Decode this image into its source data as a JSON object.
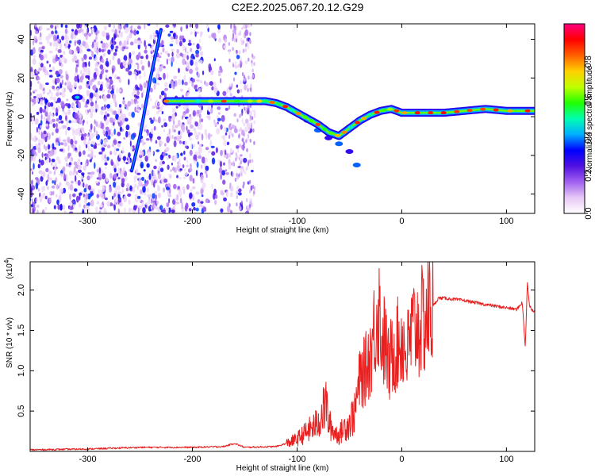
{
  "figure_title": "C2E2.2025.067.20.12.G29",
  "chart_data": [
    {
      "type": "heatmap",
      "title": "C2E2.2025.067.20.12.G29",
      "xlabel": "Height of straight line (km)",
      "ylabel": "Frequency (Hz)",
      "xlim": [
        -355,
        127
      ],
      "ylim": [
        -50,
        48
      ],
      "xticks": [
        -300,
        -200,
        -100,
        0,
        100
      ],
      "yticks": [
        -40,
        -20,
        0,
        20,
        40
      ],
      "grid": false,
      "colorbar": {
        "label": "Normalized spectral amplitude",
        "range": [
          0,
          1
        ],
        "ticks": [
          "0.0",
          "0.2",
          "0.4",
          "0.6",
          "0.8"
        ],
        "colors": [
          "#ffffff",
          "#e6c8f5",
          "#a060f0",
          "#5010e0",
          "#0000ff",
          "#00b0ff",
          "#00ffb0",
          "#20ff00",
          "#c0ff00",
          "#ffd000",
          "#ff6000",
          "#ff0000",
          "#ff0080"
        ]
      },
      "ridge": {
        "name": "",
        "x": [
          -225,
          -200,
          -180,
          -160,
          -140,
          -130,
          -120,
          -110,
          -100,
          -90,
          -80,
          -70,
          -60,
          -50,
          -40,
          -30,
          -20,
          -10,
          0,
          20,
          40,
          60,
          80,
          100,
          127
        ],
        "y": [
          8,
          8,
          8,
          8,
          8,
          8,
          7,
          5,
          2,
          -1,
          -4,
          -8,
          -10,
          -6,
          -2,
          1,
          3,
          4,
          2,
          2,
          2,
          3,
          4,
          3,
          3
        ]
      },
      "secondary_branch": {
        "x": [
          -90,
          -80,
          -70,
          -60,
          -50,
          -43
        ],
        "y": [
          -2,
          -7,
          -11,
          -14,
          -18,
          -25
        ]
      },
      "diagonal_streak": {
        "x": [
          -258,
          -250,
          -240,
          -230
        ],
        "y": [
          -28,
          -10,
          20,
          45
        ]
      },
      "isolated_blob": {
        "x": -310,
        "y": 10
      }
    },
    {
      "type": "line",
      "xlabel": "Height of straight line (km)",
      "ylabel": "SNR (10 * v/v)",
      "multiplier": "(x10",
      "multiplier_exp": "4",
      "multiplier_close": ")",
      "xlim": [
        -355,
        127
      ],
      "ylim": [
        0,
        2.35
      ],
      "xticks": [
        -300,
        -200,
        -100,
        0,
        100
      ],
      "yticks": [
        "0.5",
        "1.0",
        "1.5",
        "2.0"
      ],
      "color": "#e82020",
      "grid": false,
      "series": [
        {
          "name": "",
          "x": [
            -355,
            -300,
            -250,
            -200,
            -170,
            -160,
            -150,
            -120,
            -110,
            -100,
            -95,
            -90,
            -85,
            -80,
            -75,
            -72,
            -70,
            -65,
            -60,
            -55,
            -50,
            -45,
            -40,
            -35,
            -30,
            -25,
            -22,
            -20,
            -18,
            -15,
            -12,
            -10,
            -5,
            0,
            5,
            10,
            15,
            20,
            25,
            30,
            35,
            40,
            60,
            80,
            100,
            110,
            115,
            118,
            120,
            122,
            125,
            127
          ],
          "y": [
            0.02,
            0.03,
            0.05,
            0.05,
            0.06,
            0.1,
            0.05,
            0.06,
            0.1,
            0.15,
            0.2,
            0.25,
            0.3,
            0.35,
            0.5,
            0.6,
            0.35,
            0.25,
            0.2,
            0.3,
            0.35,
            0.5,
            0.9,
            1.0,
            1.2,
            1.6,
            1.8,
            1.5,
            1.4,
            1.3,
            1.0,
            1.2,
            1.3,
            1.4,
            1.2,
            1.5,
            1.55,
            1.6,
            1.7,
            1.8,
            1.9,
            1.9,
            1.87,
            1.82,
            1.78,
            1.76,
            1.85,
            1.3,
            2.1,
            1.8,
            1.75,
            1.74
          ]
        }
      ]
    }
  ]
}
